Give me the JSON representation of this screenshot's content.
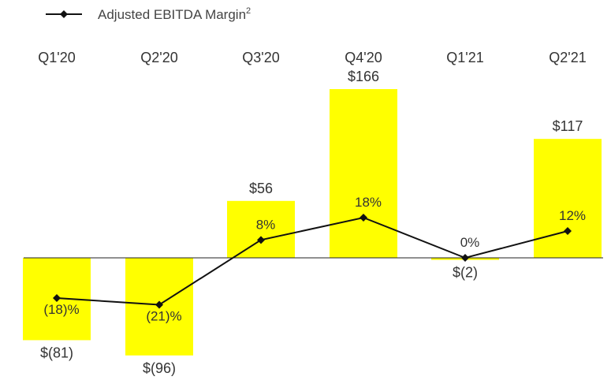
{
  "chart_data": {
    "type": "bar",
    "categories": [
      "Q1'20",
      "Q2'20",
      "Q3'20",
      "Q4'20",
      "Q1'21",
      "Q2'21"
    ],
    "series": [
      {
        "values": [
          -81,
          -96,
          56,
          166,
          -2,
          117
        ],
        "labels": [
          "$(81)",
          "$(96)",
          "$56",
          "$166",
          "$(2)",
          "$117"
        ],
        "color": "#ffff00"
      },
      {
        "name": "Adjusted EBITDA Margin",
        "name_superscript": "2",
        "type": "line",
        "values": [
          -18,
          -21,
          8,
          18,
          0,
          12
        ],
        "labels": [
          "(18)%",
          "(21)%",
          "8%",
          "18%",
          "0%",
          "12%"
        ],
        "color": "#111111",
        "marker": "diamond"
      }
    ],
    "legend": "top-left",
    "grid": false,
    "bar_ylim": [
      -100,
      170
    ],
    "line_ylim": [
      -30,
      30
    ]
  }
}
